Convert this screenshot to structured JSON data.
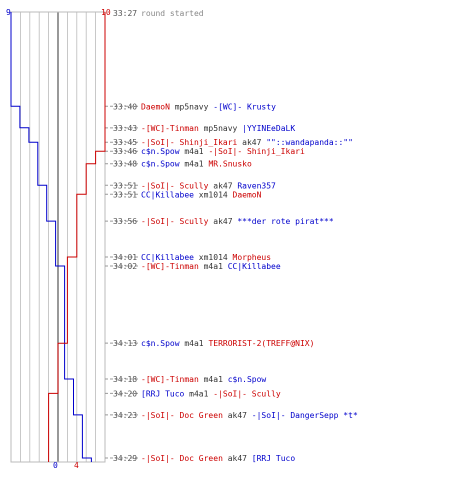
{
  "title": "round started",
  "colors": {
    "blue": "#0000cc",
    "red": "#cc0000",
    "grid": "#bbbbbb",
    "dash": "#999999",
    "text": "#333333"
  },
  "score": {
    "blue_start": "9",
    "red_start": "10",
    "blue_end": "0",
    "red_end": "4"
  },
  "events": [
    {
      "time": "33:27",
      "parts": [
        {
          "t": "round started",
          "c": "grey"
        }
      ]
    },
    {
      "time": "33:40",
      "parts": [
        {
          "t": "DaemoN",
          "c": "red"
        },
        {
          "t": " mp5navy ",
          "c": "text"
        },
        {
          "t": "-[WC]- Krusty",
          "c": "blue"
        }
      ]
    },
    {
      "time": "33:43",
      "parts": [
        {
          "t": "-[WC]-Tinman",
          "c": "red"
        },
        {
          "t": " mp5navy ",
          "c": "text"
        },
        {
          "t": "|YYINEeDaLK",
          "c": "blue"
        }
      ]
    },
    {
      "time": "33:45",
      "parts": [
        {
          "t": "-|SoI|- Shinji_Ikari",
          "c": "red"
        },
        {
          "t": " ak47 ",
          "c": "text"
        },
        {
          "t": "\"\"::wandapanda::\"\"",
          "c": "blue"
        }
      ]
    },
    {
      "time": "33:46",
      "parts": [
        {
          "t": "c$n.Spow",
          "c": "blue"
        },
        {
          "t": " m4a1 ",
          "c": "text"
        },
        {
          "t": "-|SoI|- Shinji_Ikari",
          "c": "red"
        }
      ]
    },
    {
      "time": "33:48",
      "parts": [
        {
          "t": "c$n.Spow",
          "c": "blue"
        },
        {
          "t": " m4a1 ",
          "c": "text"
        },
        {
          "t": "MR.Snusko",
          "c": "red"
        }
      ]
    },
    {
      "time": "33:51",
      "parts": [
        {
          "t": "-|SoI|- Scully",
          "c": "red"
        },
        {
          "t": " ak47 ",
          "c": "text"
        },
        {
          "t": "Raven357",
          "c": "blue"
        }
      ]
    },
    {
      "time": "33:51",
      "parts": [
        {
          "t": "CC|Killabee",
          "c": "blue"
        },
        {
          "t": " xm1014 ",
          "c": "text"
        },
        {
          "t": "DaemoN",
          "c": "red"
        }
      ]
    },
    {
      "time": "33:56",
      "parts": [
        {
          "t": "-|SoI|- Scully",
          "c": "red"
        },
        {
          "t": " ak47 ",
          "c": "text"
        },
        {
          "t": "***der rote pirat***",
          "c": "blue"
        }
      ]
    },
    {
      "time": "34:01",
      "parts": [
        {
          "t": "CC|Killabee",
          "c": "blue"
        },
        {
          "t": " xm1014 ",
          "c": "text"
        },
        {
          "t": "Morpheus",
          "c": "red"
        }
      ]
    },
    {
      "time": "34:02",
      "parts": [
        {
          "t": "-[WC]-Tinman",
          "c": "red"
        },
        {
          "t": " m4a1 ",
          "c": "text"
        },
        {
          "t": "CC|Killabee",
          "c": "blue"
        }
      ]
    },
    {
      "time": "34:13",
      "parts": [
        {
          "t": "c$n.Spow",
          "c": "blue"
        },
        {
          "t": " m4a1 ",
          "c": "text"
        },
        {
          "t": "TERRORIST-2(TREFF@NIX)",
          "c": "red"
        }
      ]
    },
    {
      "time": "34:18",
      "parts": [
        {
          "t": "-[WC]-Tinman",
          "c": "red"
        },
        {
          "t": " m4a1 ",
          "c": "text"
        },
        {
          "t": "c$n.Spow",
          "c": "blue"
        }
      ]
    },
    {
      "time": "34:20",
      "parts": [
        {
          "t": "[RRJ Tuco",
          "c": "blue"
        },
        {
          "t": " m4a1 ",
          "c": "text"
        },
        {
          "t": "-|SoI|- Scully",
          "c": "red"
        }
      ]
    },
    {
      "time": "34:23",
      "parts": [
        {
          "t": "-|SoI|- Doc Green",
          "c": "red"
        },
        {
          "t": " ak47 ",
          "c": "text"
        },
        {
          "t": "-|SoI|- DangerSepp *t*",
          "c": "blue"
        }
      ]
    },
    {
      "time": "34:29",
      "parts": [
        {
          "t": "-|SoI|- Doc Green",
          "c": "red"
        },
        {
          "t": " ak47 ",
          "c": "text"
        },
        {
          "t": "[RRJ Tuco",
          "c": "blue"
        }
      ]
    }
  ]
}
